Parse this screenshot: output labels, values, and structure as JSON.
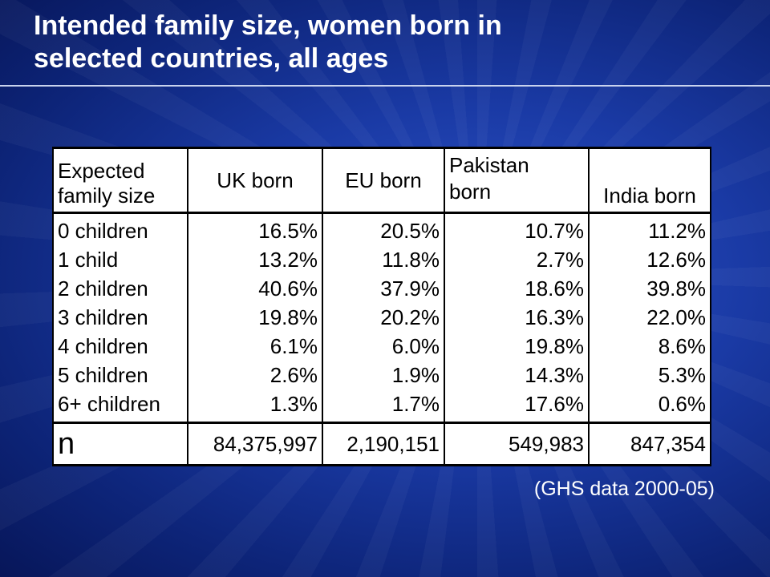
{
  "slide": {
    "title_line1": "Intended family size, women born in",
    "title_line2": "selected countries, all ages",
    "source": "(GHS data 2000-05)"
  },
  "table": {
    "header": {
      "col0_line1": "Expected",
      "col0_line2": "family size",
      "col1": "UK born",
      "col2": "EU born",
      "col3_line1": "Pakistan",
      "col3_line2": "born",
      "col4": "India born"
    },
    "rows": [
      {
        "label": "0 children",
        "uk": "16.5%",
        "eu": "20.5%",
        "pakistan": "10.7%",
        "india": "11.2%"
      },
      {
        "label": "1 child",
        "uk": "13.2%",
        "eu": "11.8%",
        "pakistan": "2.7%",
        "india": "12.6%"
      },
      {
        "label": "2 children",
        "uk": "40.6%",
        "eu": "37.9%",
        "pakistan": "18.6%",
        "india": "39.8%"
      },
      {
        "label": "3 children",
        "uk": "19.8%",
        "eu": "20.2%",
        "pakistan": "16.3%",
        "india": "22.0%"
      },
      {
        "label": "4 children",
        "uk": "6.1%",
        "eu": "6.0%",
        "pakistan": "19.8%",
        "india": "8.6%"
      },
      {
        "label": "5 children",
        "uk": "2.6%",
        "eu": "1.9%",
        "pakistan": "14.3%",
        "india": "5.3%"
      },
      {
        "label": "6+ children",
        "uk": "1.3%",
        "eu": "1.7%",
        "pakistan": "17.6%",
        "india": "0.6%"
      }
    ],
    "n_row": {
      "label": "n",
      "uk": "84,375,997",
      "eu": "2,190,151",
      "pakistan": "549,983",
      "india": "847,354"
    }
  }
}
